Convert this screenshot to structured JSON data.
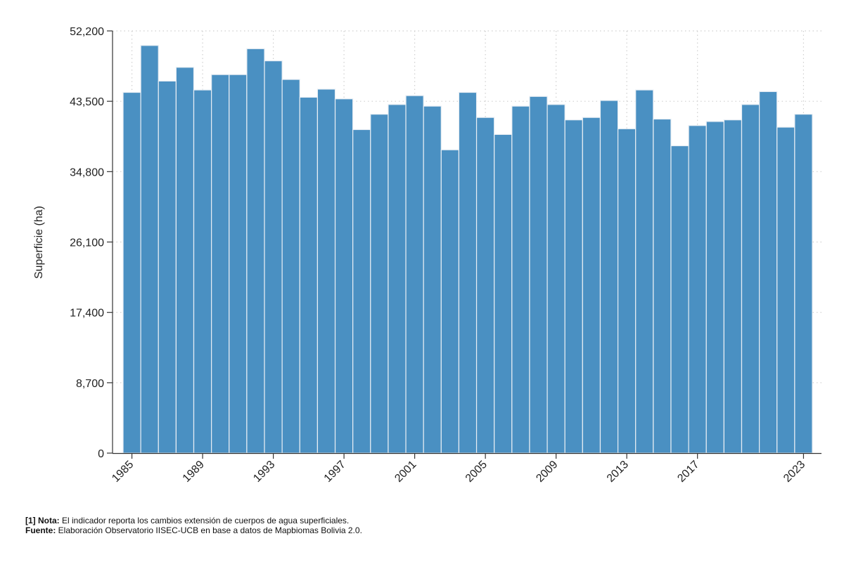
{
  "chart_data": {
    "type": "bar",
    "title": "",
    "xlabel": "",
    "ylabel": "Superficie (ha)",
    "ylim": [
      0,
      52200
    ],
    "yticks": [
      0,
      8700,
      17400,
      26100,
      34800,
      43500,
      52200
    ],
    "ytick_labels": [
      "0",
      "8,700",
      "17,400",
      "26,100",
      "34,800",
      "43,500",
      "52,200"
    ],
    "xtick_labels": [
      "1985",
      "1989",
      "1993",
      "1997",
      "2001",
      "2005",
      "2009",
      "2013",
      "2017",
      "2023"
    ],
    "grid": true,
    "bar_color": "#4a90c2",
    "categories": [
      1985,
      1986,
      1987,
      1988,
      1989,
      1990,
      1991,
      1992,
      1993,
      1994,
      1995,
      1996,
      1997,
      1998,
      1999,
      2000,
      2001,
      2002,
      2003,
      2004,
      2005,
      2006,
      2007,
      2008,
      2009,
      2010,
      2011,
      2012,
      2013,
      2014,
      2015,
      2016,
      2017,
      2018,
      2019,
      2020,
      2021,
      2022,
      2023
    ],
    "values": [
      44600,
      50400,
      46000,
      47700,
      44900,
      46800,
      46800,
      50000,
      48500,
      46200,
      44000,
      45000,
      43800,
      40000,
      41900,
      43100,
      44200,
      42900,
      37500,
      44600,
      41500,
      39400,
      42900,
      44100,
      43100,
      41200,
      41500,
      43600,
      40100,
      44900,
      41300,
      38000,
      40500,
      41000,
      41200,
      43100,
      44700,
      40300,
      41900
    ]
  },
  "notes": {
    "line1_label": "[1] Nota:",
    "line1_text": " El indicador reporta los cambios extensión de cuerpos de agua superficiales.",
    "line2_label": "Fuente:",
    "line2_text": " Elaboración Observatorio IISEC-UCB en base a datos de Mapbiomas Bolivia 2.0."
  }
}
